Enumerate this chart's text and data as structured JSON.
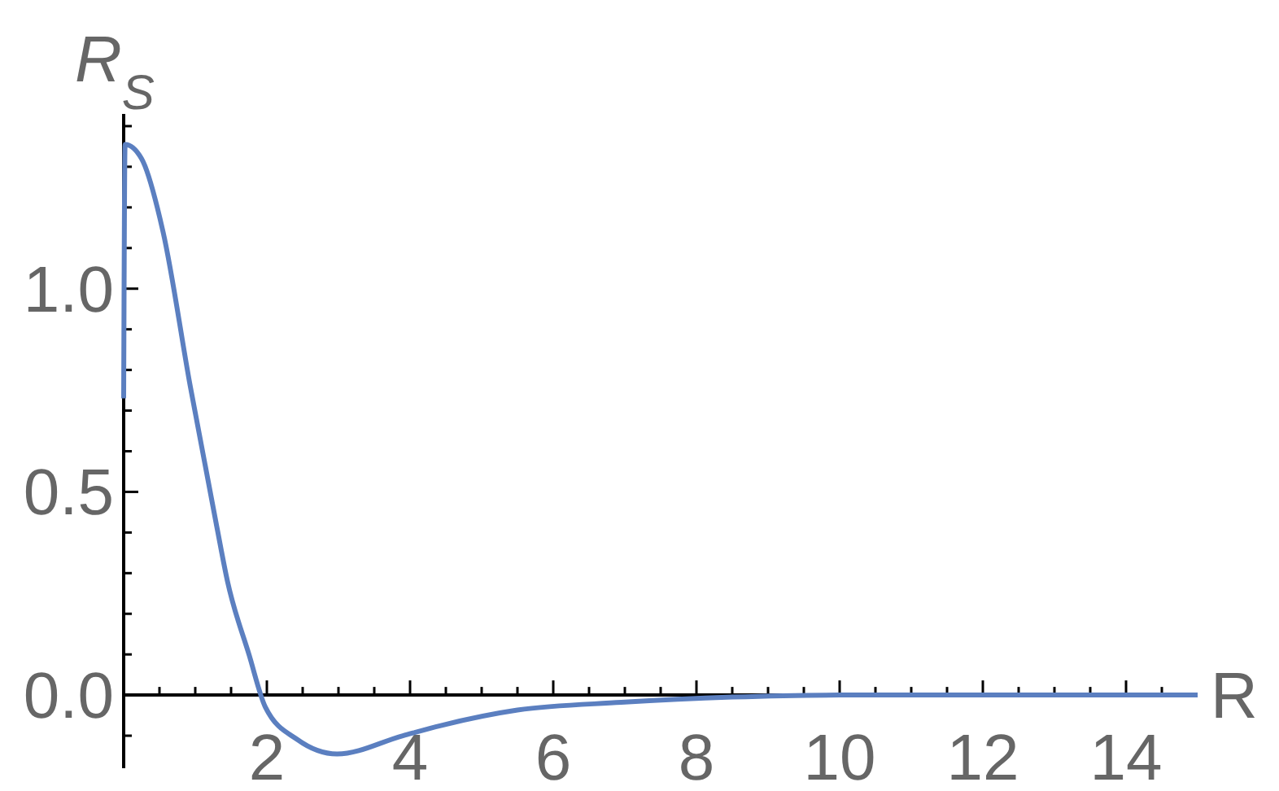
{
  "chart_data": {
    "type": "line",
    "xlabel": "R",
    "ylabel": "R$_{S}$",
    "x": [
      0,
      0.02,
      0.25,
      0.55,
      0.93,
      1.3,
      1.45,
      1.75,
      1.98,
      2.43,
      2.98,
      3.9,
      4.43,
      5.5,
      6.95,
      8.5,
      10,
      12,
      15
    ],
    "series": [
      {
        "color": "#5b7fc0",
        "values": [
          0.73,
          1.355,
          1.32,
          1.14,
          0.76,
          0.415,
          0.28,
          0.1,
          -0.03,
          -0.11,
          -0.145,
          -0.1,
          -0.075,
          -0.037,
          -0.018,
          -0.005,
          0,
          0,
          0
        ]
      }
    ],
    "xlim": [
      0,
      15
    ],
    "ylim": [
      -0.18,
      1.43
    ],
    "xticks": [
      {
        "value": 0.5,
        "label": null
      },
      {
        "value": 1,
        "label": null
      },
      {
        "value": 1.5,
        "label": null
      },
      2,
      {
        "value": 2.5,
        "label": null
      },
      {
        "value": 3,
        "label": null
      },
      {
        "value": 3.5,
        "label": null
      },
      4,
      {
        "value": 4.5,
        "label": null
      },
      {
        "value": 5,
        "label": null
      },
      {
        "value": 5.5,
        "label": null
      },
      6,
      {
        "value": 6.5,
        "label": null
      },
      {
        "value": 7,
        "label": null
      },
      {
        "value": 7.5,
        "label": null
      },
      8,
      {
        "value": 8.5,
        "label": null
      },
      {
        "value": 9,
        "label": null
      },
      {
        "value": 9.5,
        "label": null
      },
      10,
      {
        "value": 10.5,
        "label": null
      },
      {
        "value": 11,
        "label": null
      },
      {
        "value": 11.5,
        "label": null
      },
      12,
      {
        "value": 12.5,
        "label": null
      },
      {
        "value": 13,
        "label": null
      },
      {
        "value": 13.5,
        "label": null
      },
      14,
      {
        "value": 14.5,
        "label": null
      }
    ],
    "yticks": [
      {
        "value": -0.1,
        "label": null
      },
      {
        "value": 0,
        "label": "0.0"
      },
      {
        "value": 0.1,
        "label": null
      },
      {
        "value": 0.2,
        "label": null
      },
      {
        "value": 0.3,
        "label": null
      },
      {
        "value": 0.4,
        "label": null
      },
      {
        "value": 0.5,
        "label": "0.5"
      },
      {
        "value": 0.6,
        "label": null
      },
      {
        "value": 0.7,
        "label": null
      },
      {
        "value": 0.8,
        "label": null
      },
      {
        "value": 0.9,
        "label": null
      },
      {
        "value": 1,
        "label": "1.0"
      },
      {
        "value": 1.1,
        "label": null
      },
      {
        "value": 1.2,
        "label": null
      },
      {
        "value": 1.3,
        "label": null
      },
      {
        "value": 1.4,
        "label": null
      }
    ],
    "grid": false,
    "marker": "none",
    "line_style": "solid"
  }
}
